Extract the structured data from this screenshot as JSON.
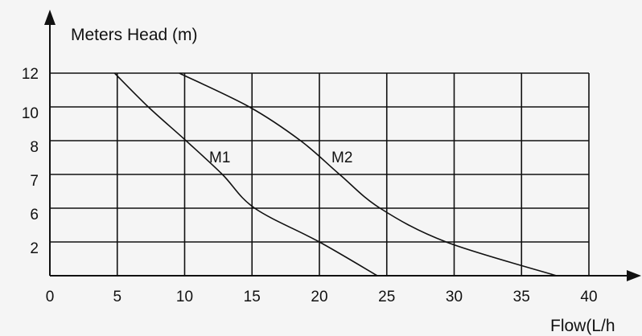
{
  "chart_data": {
    "type": "line",
    "title": "",
    "xlabel": "Flow(L/h",
    "ylabel": "Meters Head (m)",
    "grid": true,
    "xlim": [
      0,
      40
    ],
    "x_ticks": [
      "0",
      "5",
      "10",
      "15",
      "20",
      "25",
      "30",
      "35",
      "40"
    ],
    "y_ticks": [
      "2",
      "6",
      "7",
      "8",
      "10",
      "12"
    ],
    "y_note": "the y axis tick labels are not evenly spaced in value; rows are drawn equal height",
    "series": [
      {
        "name": "M1",
        "points": [
          [
            4.8,
            12
          ],
          [
            7.3,
            10
          ],
          [
            10.1,
            8
          ],
          [
            12.8,
            7
          ],
          [
            15.2,
            6
          ],
          [
            20.0,
            2
          ],
          [
            24.3,
            0
          ]
        ]
      },
      {
        "name": "M2",
        "points": [
          [
            9.6,
            12
          ],
          [
            14.8,
            10
          ],
          [
            18.6,
            8
          ],
          [
            21.5,
            7
          ],
          [
            24.5,
            6
          ],
          [
            29.4,
            2
          ],
          [
            37.6,
            0
          ]
        ]
      }
    ],
    "colors": {
      "background": "#f5f5f5",
      "ink": "#111111"
    }
  }
}
